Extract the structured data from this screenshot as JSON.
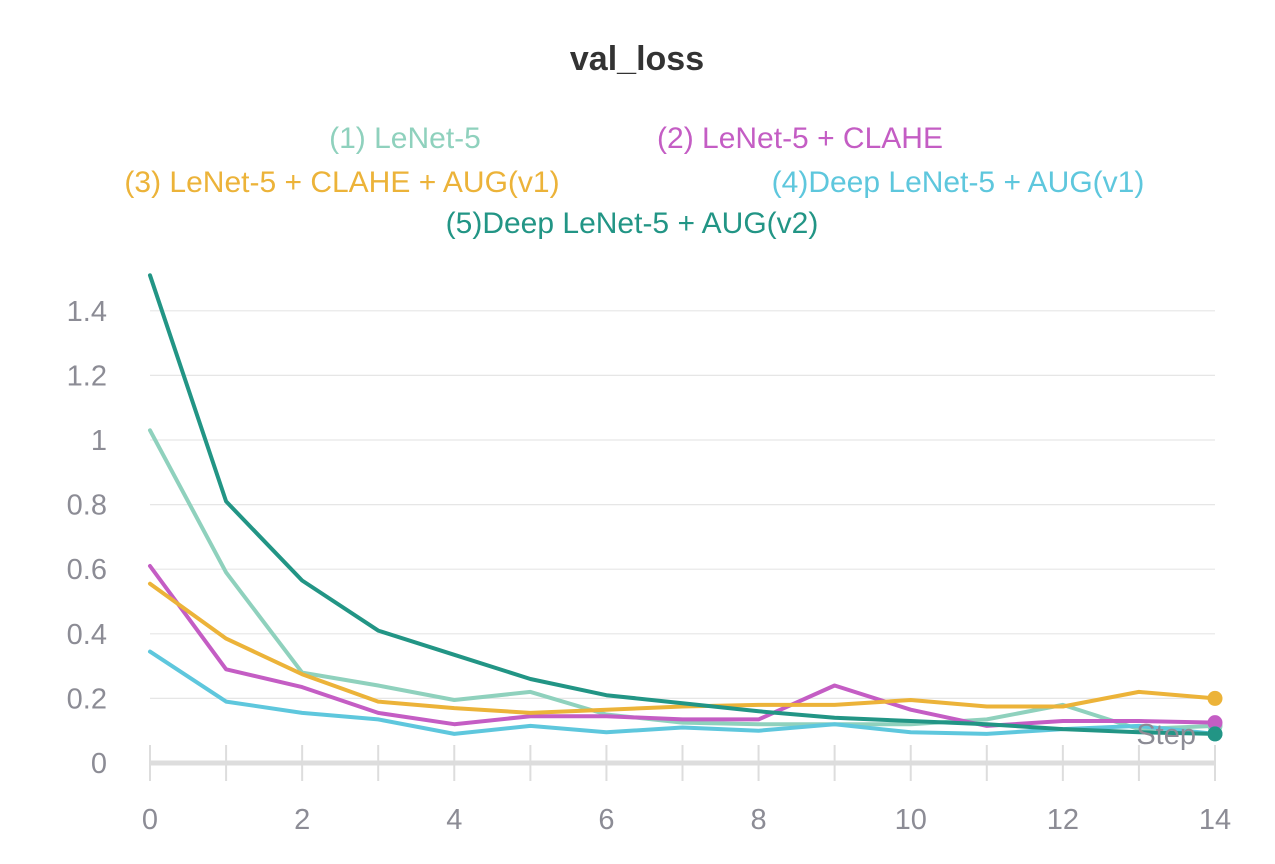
{
  "chart_data": {
    "type": "line",
    "title": "val_loss",
    "xlabel": "Step",
    "ylabel": "",
    "xlim": [
      0,
      14
    ],
    "ylim": [
      0,
      1.5
    ],
    "x_ticks": [
      0,
      2,
      4,
      6,
      8,
      10,
      12,
      14
    ],
    "y_ticks": [
      "0",
      "0.2",
      "0.4",
      "0.6",
      "0.8",
      "1",
      "1.2",
      "1.4"
    ],
    "grid": true,
    "legend_position": "top",
    "x": [
      0,
      1,
      2,
      3,
      4,
      5,
      6,
      7,
      8,
      9,
      10,
      11,
      12,
      13,
      14
    ],
    "series": [
      {
        "name": "(1) LeNet-5",
        "color": "#8fd1bd",
        "values": [
          1.03,
          0.59,
          0.28,
          0.24,
          0.195,
          0.22,
          0.15,
          0.125,
          0.12,
          0.12,
          0.12,
          0.135,
          0.18,
          0.105,
          0.115
        ]
      },
      {
        "name": "(2) LeNet-5 + CLAHE",
        "color": "#c45dc4",
        "values": [
          0.61,
          0.29,
          0.235,
          0.155,
          0.12,
          0.145,
          0.145,
          0.135,
          0.135,
          0.24,
          0.165,
          0.115,
          0.13,
          0.13,
          0.125
        ]
      },
      {
        "name": "(3) LeNet-5 + CLAHE + AUG(v1)",
        "color": "#ecb339",
        "values": [
          0.555,
          0.385,
          0.275,
          0.19,
          0.17,
          0.155,
          0.165,
          0.175,
          0.18,
          0.18,
          0.195,
          0.175,
          0.175,
          0.22,
          0.2
        ]
      },
      {
        "name": "(4)Deep LeNet-5 + AUG(v1)",
        "color": "#5ec7dd",
        "values": [
          0.345,
          0.19,
          0.155,
          0.135,
          0.09,
          0.115,
          0.095,
          0.11,
          0.1,
          0.12,
          0.095,
          0.09,
          0.105,
          0.115,
          0.09
        ]
      },
      {
        "name": "(5)Deep LeNet-5 + AUG(v2)",
        "color": "#229585",
        "values": [
          1.51,
          0.81,
          0.565,
          0.41,
          0.335,
          0.26,
          0.21,
          0.185,
          0.16,
          0.14,
          0.13,
          0.12,
          0.105,
          0.095,
          0.09
        ]
      }
    ]
  }
}
